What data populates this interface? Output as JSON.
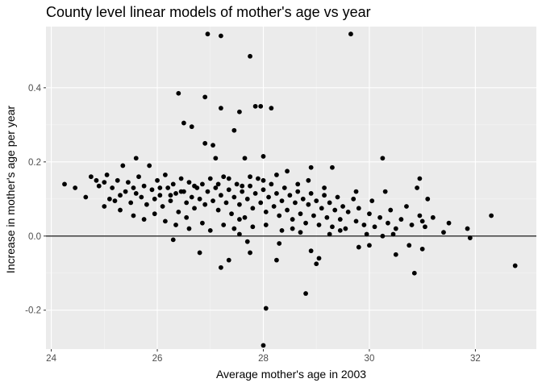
{
  "chart_data": {
    "type": "scatter",
    "title": "County level linear models of mother's age vs year",
    "xlabel": "Average mother's age in 2003",
    "ylabel": "Increase in mother's age per year",
    "xlim": [
      23.9,
      33.15
    ],
    "ylim": [
      -0.305,
      0.565
    ],
    "x_ticks": [
      24,
      26,
      28,
      30,
      32
    ],
    "x_tick_labels": [
      "24",
      "26",
      "28",
      "30",
      "32"
    ],
    "y_ticks": [
      -0.2,
      0.0,
      0.2,
      0.4
    ],
    "y_tick_labels": [
      "-0.2",
      "0.0",
      "0.2",
      "0.4"
    ],
    "reference_line": {
      "y": 0.0,
      "color": "#000000"
    },
    "grid": true,
    "legend": "none",
    "colors": {
      "panel": "#ebebeb",
      "grid_major": "#ffffff",
      "grid_minor": "#f5f5f5",
      "points": "#000000",
      "tick_text": "#4d4d4d"
    },
    "series": [
      {
        "points": [
          [
            26.95,
            0.545
          ],
          [
            27.2,
            0.54
          ],
          [
            29.65,
            0.545
          ],
          [
            27.75,
            0.485
          ],
          [
            26.4,
            0.385
          ],
          [
            26.9,
            0.375
          ],
          [
            27.85,
            0.35
          ],
          [
            27.95,
            0.35
          ],
          [
            28.15,
            0.345
          ],
          [
            27.2,
            0.345
          ],
          [
            27.55,
            0.335
          ],
          [
            27.45,
            0.285
          ],
          [
            26.5,
            0.305
          ],
          [
            26.65,
            0.295
          ],
          [
            26.9,
            0.25
          ],
          [
            27.05,
            0.245
          ],
          [
            25.6,
            0.21
          ],
          [
            27.1,
            0.21
          ],
          [
            27.65,
            0.21
          ],
          [
            28.0,
            0.215
          ],
          [
            29.3,
            0.185
          ],
          [
            30.25,
            0.21
          ],
          [
            28.9,
            0.185
          ],
          [
            24.25,
            0.14
          ],
          [
            24.45,
            0.13
          ],
          [
            24.65,
            0.105
          ],
          [
            24.75,
            0.16
          ],
          [
            24.85,
            0.15
          ],
          [
            24.9,
            0.135
          ],
          [
            25.0,
            0.145
          ],
          [
            25.05,
            0.165
          ],
          [
            25.1,
            0.1
          ],
          [
            25.15,
            0.13
          ],
          [
            25.2,
            0.095
          ],
          [
            25.25,
            0.15
          ],
          [
            25.3,
            0.11
          ],
          [
            25.35,
            0.19
          ],
          [
            25.4,
            0.12
          ],
          [
            25.45,
            0.145
          ],
          [
            25.5,
            0.09
          ],
          [
            25.55,
            0.13
          ],
          [
            25.6,
            0.115
          ],
          [
            25.65,
            0.16
          ],
          [
            25.7,
            0.105
          ],
          [
            25.75,
            0.135
          ],
          [
            25.8,
            0.085
          ],
          [
            25.85,
            0.19
          ],
          [
            25.9,
            0.125
          ],
          [
            25.95,
            0.1
          ],
          [
            26.0,
            0.15
          ],
          [
            26.05,
            0.11
          ],
          [
            26.1,
            0.08
          ],
          [
            26.15,
            0.165
          ],
          [
            26.2,
            0.13
          ],
          [
            26.25,
            0.095
          ],
          [
            26.3,
            0.14
          ],
          [
            26.35,
            0.115
          ],
          [
            26.4,
            0.065
          ],
          [
            26.45,
            0.155
          ],
          [
            26.5,
            0.12
          ],
          [
            26.55,
            0.09
          ],
          [
            26.6,
            0.145
          ],
          [
            26.65,
            0.105
          ],
          [
            26.7,
            0.075
          ],
          [
            26.75,
            0.13
          ],
          [
            26.8,
            0.1
          ],
          [
            26.85,
            0.14
          ],
          [
            26.9,
            0.085
          ],
          [
            26.95,
            0.12
          ],
          [
            27.0,
            0.155
          ],
          [
            27.05,
            0.095
          ],
          [
            27.1,
            0.13
          ],
          [
            27.15,
            0.07
          ],
          [
            27.2,
            0.11
          ],
          [
            27.25,
            0.16
          ],
          [
            27.3,
            0.09
          ],
          [
            27.35,
            0.125
          ],
          [
            27.4,
            0.06
          ],
          [
            27.45,
            0.105
          ],
          [
            27.5,
            0.14
          ],
          [
            27.55,
            0.085
          ],
          [
            27.6,
            0.12
          ],
          [
            27.65,
            0.05
          ],
          [
            27.7,
            0.1
          ],
          [
            27.75,
            0.135
          ],
          [
            27.8,
            0.075
          ],
          [
            27.85,
            0.115
          ],
          [
            27.9,
            0.155
          ],
          [
            27.95,
            0.09
          ],
          [
            28.0,
            0.125
          ],
          [
            28.05,
            0.065
          ],
          [
            28.1,
            0.105
          ],
          [
            28.15,
            0.14
          ],
          [
            28.2,
            0.08
          ],
          [
            28.25,
            0.115
          ],
          [
            28.3,
            0.055
          ],
          [
            28.35,
            0.095
          ],
          [
            28.4,
            0.13
          ],
          [
            28.45,
            0.07
          ],
          [
            28.5,
            0.11
          ],
          [
            28.55,
            0.045
          ],
          [
            28.6,
            0.09
          ],
          [
            28.65,
            0.12
          ],
          [
            28.7,
            0.06
          ],
          [
            28.75,
            0.1
          ],
          [
            28.8,
            0.035
          ],
          [
            28.85,
            0.085
          ],
          [
            28.9,
            0.115
          ],
          [
            28.95,
            0.055
          ],
          [
            29.0,
            0.095
          ],
          [
            29.05,
            0.03
          ],
          [
            29.1,
            0.075
          ],
          [
            29.15,
            0.11
          ],
          [
            29.2,
            0.05
          ],
          [
            29.25,
            0.09
          ],
          [
            29.3,
            0.025
          ],
          [
            29.35,
            0.07
          ],
          [
            29.4,
            0.105
          ],
          [
            29.45,
            0.045
          ],
          [
            29.5,
            0.08
          ],
          [
            29.55,
            0.02
          ],
          [
            29.6,
            0.065
          ],
          [
            29.7,
            0.1
          ],
          [
            29.75,
            0.04
          ],
          [
            29.8,
            0.075
          ],
          [
            29.9,
            0.03
          ],
          [
            30.0,
            0.06
          ],
          [
            30.05,
            0.095
          ],
          [
            30.1,
            0.025
          ],
          [
            30.2,
            0.05
          ],
          [
            30.3,
            0.12
          ],
          [
            30.35,
            0.035
          ],
          [
            30.4,
            0.07
          ],
          [
            30.5,
            0.02
          ],
          [
            30.6,
            0.045
          ],
          [
            30.7,
            0.08
          ],
          [
            30.8,
            0.03
          ],
          [
            30.9,
            0.13
          ],
          [
            30.95,
            0.055
          ],
          [
            31.0,
            0.04
          ],
          [
            31.05,
            0.025
          ],
          [
            31.1,
            0.1
          ],
          [
            31.2,
            0.05
          ],
          [
            31.4,
            0.01
          ],
          [
            31.5,
            0.035
          ],
          [
            31.85,
            0.02
          ],
          [
            32.3,
            0.055
          ],
          [
            31.9,
            -0.005
          ],
          [
            32.75,
            -0.08
          ],
          [
            26.3,
            -0.01
          ],
          [
            26.8,
            -0.045
          ],
          [
            27.2,
            -0.085
          ],
          [
            27.35,
            -0.065
          ],
          [
            27.55,
            0.005
          ],
          [
            27.7,
            -0.015
          ],
          [
            27.75,
            -0.045
          ],
          [
            28.25,
            -0.065
          ],
          [
            28.3,
            -0.02
          ],
          [
            28.8,
            -0.155
          ],
          [
            28.9,
            -0.04
          ],
          [
            29.05,
            -0.06
          ],
          [
            29.0,
            -0.075
          ],
          [
            29.8,
            -0.03
          ],
          [
            30.0,
            -0.025
          ],
          [
            30.5,
            -0.05
          ],
          [
            30.75,
            -0.025
          ],
          [
            30.85,
            -0.1
          ],
          [
            31.0,
            -0.035
          ],
          [
            28.05,
            -0.195
          ],
          [
            28.0,
            -0.295
          ],
          [
            25.0,
            0.08
          ],
          [
            25.3,
            0.07
          ],
          [
            25.55,
            0.055
          ],
          [
            25.75,
            0.045
          ],
          [
            25.95,
            0.06
          ],
          [
            26.15,
            0.04
          ],
          [
            26.35,
            0.03
          ],
          [
            26.55,
            0.05
          ],
          [
            26.6,
            0.02
          ],
          [
            26.85,
            0.035
          ],
          [
            27.0,
            0.015
          ],
          [
            27.25,
            0.03
          ],
          [
            27.45,
            0.02
          ],
          [
            27.55,
            0.045
          ],
          [
            27.8,
            0.025
          ],
          [
            28.05,
            0.03
          ],
          [
            28.35,
            0.015
          ],
          [
            28.55,
            0.02
          ],
          [
            28.7,
            0.01
          ],
          [
            29.25,
            0.005
          ],
          [
            29.45,
            0.015
          ],
          [
            29.95,
            0.005
          ],
          [
            30.25,
            0.0
          ],
          [
            30.45,
            0.005
          ],
          [
            26.05,
            0.13
          ],
          [
            26.25,
            0.11
          ],
          [
            26.45,
            0.12
          ],
          [
            26.7,
            0.135
          ],
          [
            27.15,
            0.14
          ],
          [
            27.35,
            0.155
          ],
          [
            27.6,
            0.135
          ],
          [
            27.75,
            0.16
          ],
          [
            28.0,
            0.15
          ],
          [
            28.25,
            0.165
          ],
          [
            28.45,
            0.175
          ],
          [
            28.65,
            0.14
          ],
          [
            28.85,
            0.15
          ],
          [
            29.15,
            0.13
          ],
          [
            29.75,
            0.12
          ],
          [
            30.95,
            0.155
          ]
        ]
      }
    ]
  }
}
